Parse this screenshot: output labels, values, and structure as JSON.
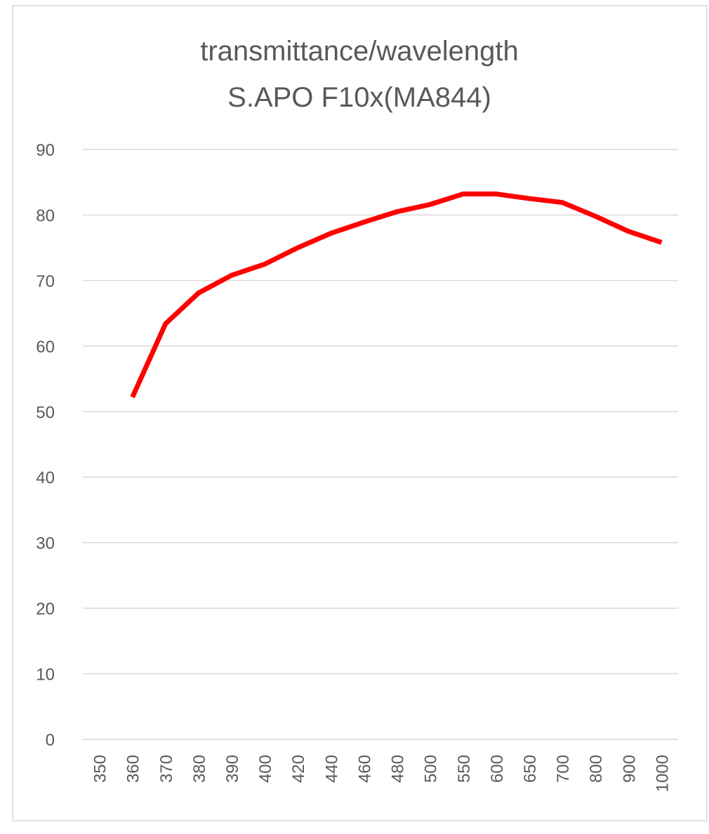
{
  "chart_data": {
    "type": "line",
    "title": "transmittance/wavelength",
    "subtitle": "S.APO F10x(MA844)",
    "categories": [
      "350",
      "360",
      "370",
      "380",
      "390",
      "400",
      "420",
      "440",
      "460",
      "480",
      "500",
      "550",
      "600",
      "650",
      "700",
      "800",
      "900",
      "1000"
    ],
    "series": [
      {
        "name": "transmittance",
        "color": "#ff0000",
        "values": [
          null,
          52.2,
          63.4,
          68.1,
          70.8,
          72.5,
          75.0,
          77.2,
          78.9,
          80.5,
          81.6,
          83.2,
          83.2,
          82.5,
          81.9,
          79.8,
          77.5,
          75.8
        ]
      }
    ],
    "ylim": [
      0,
      90
    ],
    "yticks": [
      0,
      10,
      20,
      30,
      40,
      50,
      60,
      70,
      80,
      90
    ],
    "grid": true,
    "legend": false
  }
}
